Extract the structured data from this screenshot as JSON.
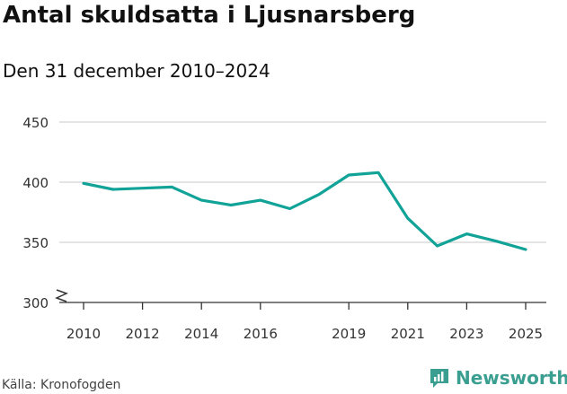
{
  "title": "Antal skuldsatta i Ljusnarsberg",
  "subtitle": "Den 31 december 2010–2024",
  "source": "Källa: Kronofogden",
  "brand": {
    "name": "Newsworthy",
    "icon": "newsworthy-logo-icon",
    "color": "#3a9e90"
  },
  "chart_data": {
    "type": "line",
    "title": "Antal skuldsatta i Ljusnarsberg",
    "subtitle": "Den 31 december 2010–2024",
    "xlabel": "",
    "ylabel": "",
    "x": [
      2010,
      2011,
      2012,
      2013,
      2014,
      2015,
      2016,
      2017,
      2018,
      2019,
      2020,
      2021,
      2022,
      2023,
      2024,
      2025
    ],
    "series": [
      {
        "values": [
          399,
          394,
          395,
          396,
          385,
          381,
          385,
          378,
          390,
          406,
          408,
          370,
          347,
          357,
          351,
          344
        ],
        "color": "#12a398"
      }
    ],
    "xticks": [
      "2010",
      "2012",
      "2014",
      "2016",
      "2019",
      "2021",
      "2023",
      "2025"
    ],
    "xtick_values": [
      2010,
      2012,
      2014,
      2016,
      2019,
      2021,
      2023,
      2025
    ],
    "yticks": [
      300,
      350,
      400,
      450
    ],
    "ylim": [
      300,
      450
    ],
    "y_axis_break": true,
    "grid": true,
    "gridline_color": "#d4d4d4"
  }
}
